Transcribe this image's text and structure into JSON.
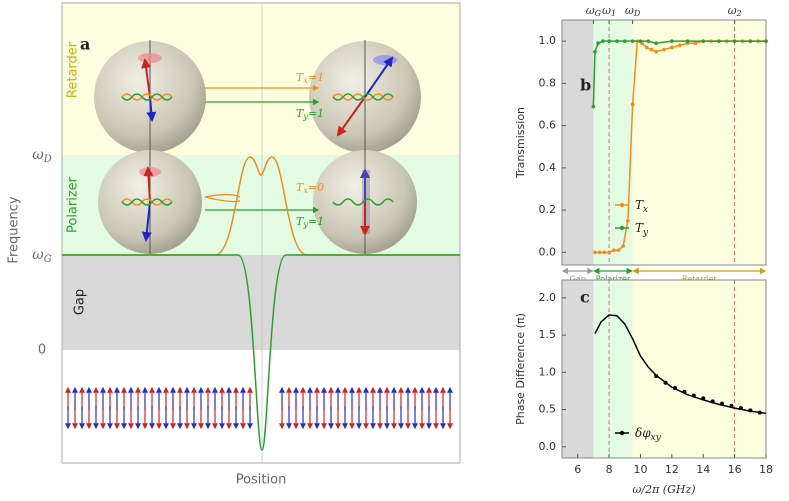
{
  "panel_a": {
    "letter": "a",
    "regions": [
      "Retarder",
      "Polarizer",
      "Gap"
    ],
    "ylabel": "Frequency",
    "xlabel": "Position",
    "levels": [
      {
        "label": "ω",
        "sub": "D"
      },
      {
        "label": "ω",
        "sub": "G"
      },
      {
        "label": "0"
      }
    ],
    "arrow_labels": [
      {
        "text": "T",
        "sub": "x",
        "rest": "=1"
      },
      {
        "text": "T",
        "sub": "y",
        "rest": "=1"
      },
      {
        "text": "T",
        "sub": "x",
        "rest": "=0"
      },
      {
        "text": "T",
        "sub": "y",
        "rest": "=1"
      }
    ]
  },
  "chart_data": [
    {
      "type": "line",
      "letter": "b",
      "ylabel": "Transmission",
      "xlim": [
        5,
        18
      ],
      "ylim": [
        -0.06,
        1.1
      ],
      "yticks": [
        {
          "value": 0,
          "label": "0.0"
        },
        0.2,
        0.4,
        0.6,
        0.8,
        {
          "value": 1,
          "label": "1.0"
        }
      ],
      "xticks_top": [
        {
          "value": 7,
          "label": "ω",
          "sub": "G"
        },
        {
          "value": 8,
          "label": "ω",
          "sub": "1"
        },
        {
          "value": 9.5,
          "label": "ω",
          "sub": "D"
        },
        {
          "value": 16,
          "label": "ω",
          "sub": "2"
        }
      ],
      "regions": [
        {
          "from": 5,
          "to": 7,
          "color": "#d9d9d9"
        },
        {
          "from": 7,
          "to": 9.5,
          "color": "#e3fae3"
        },
        {
          "from": 9.5,
          "to": 18,
          "color": "#fdfde0"
        }
      ],
      "dashed_x": [
        8,
        16
      ],
      "bands": [
        {
          "label": "Gap",
          "from": 5,
          "to": 7,
          "color": "#999999"
        },
        {
          "label": "Polarizer",
          "from": 7,
          "to": 9.5,
          "color": "#2ca02c"
        },
        {
          "label": "Retarder",
          "from": 9.5,
          "to": 18,
          "color": "#c8a400"
        }
      ],
      "series": [
        {
          "name": "T",
          "sub": "x",
          "color": "#f28e1c",
          "markers": true,
          "x": [
            7.1,
            7.4,
            7.7,
            8,
            8.3,
            8.6,
            8.9,
            9.2,
            9.5,
            9.8,
            10.1,
            10.4,
            10.7,
            11,
            11.5,
            12,
            12.5,
            13,
            13.5,
            14,
            14.5,
            15,
            15.5,
            16,
            16.5,
            17,
            17.5,
            18
          ],
          "values": [
            0,
            0,
            0,
            0,
            0.01,
            0.01,
            0.03,
            0.15,
            0.7,
            1.0,
            0.99,
            0.97,
            0.96,
            0.95,
            0.96,
            0.97,
            0.98,
            0.99,
            0.99,
            1.0,
            1.0,
            1.0,
            1.0,
            1.0,
            1.0,
            1.0,
            1.0,
            1.0
          ]
        },
        {
          "name": "T",
          "sub": "y",
          "color": "#2ca02c",
          "markers": true,
          "x": [
            7.0,
            7.1,
            7.3,
            7.6,
            8,
            8.5,
            9,
            9.5,
            10,
            10.5,
            11,
            12,
            13,
            14,
            15,
            16,
            17,
            18
          ],
          "values": [
            0.69,
            0.95,
            0.99,
            1.0,
            1.0,
            1.0,
            1.0,
            1.0,
            1.0,
            1.0,
            0.99,
            1.0,
            1.0,
            1.0,
            1.0,
            1.0,
            1.0,
            1.0
          ]
        }
      ]
    },
    {
      "type": "line",
      "letter": "c",
      "ylabel": "Phase Difference (π)",
      "xlabel": "ω/2π (GHz)",
      "xlim": [
        5,
        18
      ],
      "xticks": [
        6,
        8,
        10,
        12,
        14,
        16,
        18
      ],
      "ylim": [
        -0.15,
        2.24
      ],
      "yticks": [
        {
          "value": 0,
          "label": "0.0"
        },
        0.5,
        {
          "value": 1,
          "label": "1.0"
        },
        1.5,
        {
          "value": 2,
          "label": "2.0"
        }
      ],
      "regions": [
        {
          "from": 5,
          "to": 7,
          "color": "#d9d9d9"
        },
        {
          "from": 7,
          "to": 9.5,
          "color": "#e3fae3"
        },
        {
          "from": 9.5,
          "to": 18,
          "color": "#fdfde0"
        }
      ],
      "dashed_x": [
        8,
        16
      ],
      "series": [
        {
          "name": "δφ",
          "sub": "xy",
          "color": "#000000",
          "markers": false,
          "x": [
            7.1,
            7.5,
            8,
            8.5,
            9,
            9.5,
            10,
            10.5,
            11,
            12,
            13,
            14,
            15,
            16,
            17,
            18
          ],
          "values": [
            1.52,
            1.68,
            1.77,
            1.76,
            1.65,
            1.45,
            1.22,
            1.07,
            0.96,
            0.8,
            0.7,
            0.63,
            0.57,
            0.52,
            0.48,
            0.45
          ]
        }
      ],
      "measured": {
        "color": "#000000",
        "x": [
          11,
          11.6,
          12.2,
          12.8,
          13.4,
          14,
          14.6,
          15.2,
          15.8,
          16.4,
          17,
          17.6
        ],
        "values": [
          0.95,
          0.86,
          0.79,
          0.74,
          0.69,
          0.65,
          0.61,
          0.58,
          0.55,
          0.52,
          0.49,
          0.46
        ]
      }
    }
  ]
}
